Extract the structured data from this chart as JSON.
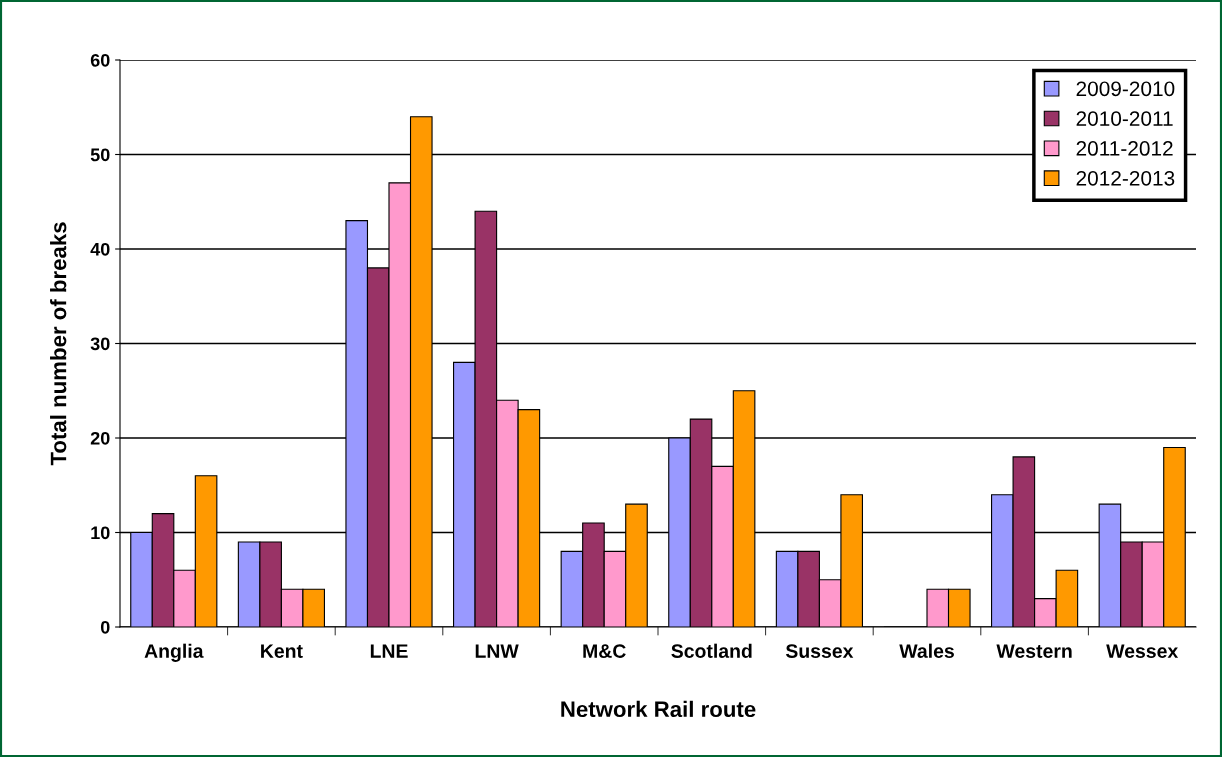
{
  "chart_data": {
    "type": "bar",
    "xlabel": "Network Rail route",
    "ylabel": "Total number of breaks",
    "categories": [
      "Anglia",
      "Kent",
      "LNE",
      "LNW",
      "M&C",
      "Scotland",
      "Sussex",
      "Wales",
      "Western",
      "Wessex"
    ],
    "series": [
      {
        "name": "2009-2010",
        "color": "#9999ff",
        "values": [
          10,
          9,
          43,
          28,
          8,
          20,
          8,
          0,
          14,
          13
        ]
      },
      {
        "name": "2010-2011",
        "color": "#993366",
        "values": [
          12,
          9,
          38,
          44,
          11,
          22,
          8,
          0,
          18,
          9
        ]
      },
      {
        "name": "2011-2012",
        "color": "#ff99cc",
        "values": [
          6,
          4,
          47,
          24,
          8,
          17,
          5,
          4,
          3,
          9
        ]
      },
      {
        "name": "2012-2013",
        "color": "#ff9900",
        "values": [
          16,
          4,
          54,
          23,
          13,
          25,
          14,
          4,
          6,
          19
        ]
      }
    ],
    "ylim": [
      0,
      60
    ],
    "yticks": [
      0,
      10,
      20,
      30,
      40,
      50,
      60
    ],
    "grid": "y",
    "legend": "top right"
  }
}
